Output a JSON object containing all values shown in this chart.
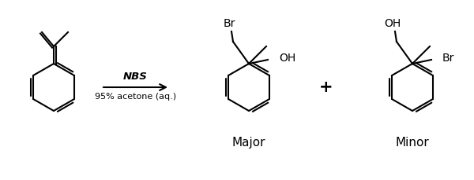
{
  "bg_color": "#ffffff",
  "line_color": "#000000",
  "figsize": [
    6.0,
    2.29
  ],
  "dpi": 100,
  "reagent_line1": "NBS",
  "reagent_line2": "95% acetone (aq.)",
  "label_major": "Major",
  "label_minor": "Minor",
  "label_plus": "+",
  "label_br1": "Br",
  "label_oh1": "OH",
  "label_br2": "Br",
  "label_oh2": "OH"
}
